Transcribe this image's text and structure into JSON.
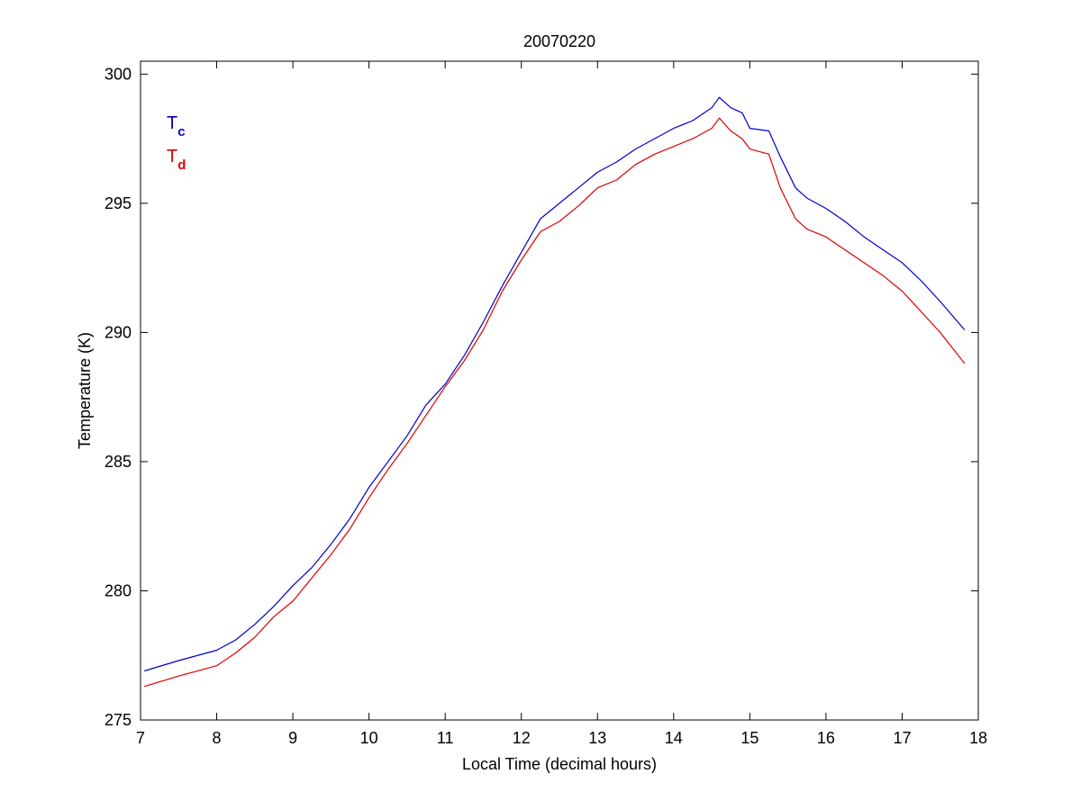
{
  "chart_data": {
    "type": "line",
    "title": "20070220",
    "xlabel": "Local Time (decimal hours)",
    "ylabel": "Temperature (K)",
    "xlim": [
      7,
      18
    ],
    "ylim": [
      275,
      300.5
    ],
    "xticks": [
      7,
      8,
      9,
      10,
      11,
      12,
      13,
      14,
      15,
      16,
      17,
      18
    ],
    "yticks": [
      275,
      280,
      285,
      290,
      295,
      300
    ],
    "grid": false,
    "legend": {
      "placement": "top-left",
      "entries": [
        {
          "main": "T",
          "sub": "c",
          "color": "#0000cc"
        },
        {
          "main": "T",
          "sub": "d",
          "color": "#dd0000"
        }
      ]
    },
    "series": [
      {
        "key": "Tc",
        "color": "#0000cc",
        "x": [
          7.05,
          7.5,
          8.0,
          8.25,
          8.5,
          8.75,
          9.0,
          9.25,
          9.5,
          9.75,
          10.0,
          10.25,
          10.5,
          10.75,
          11.0,
          11.25,
          11.5,
          11.75,
          12.0,
          12.25,
          12.5,
          12.75,
          13.0,
          13.25,
          13.5,
          13.75,
          14.0,
          14.25,
          14.5,
          14.6,
          14.75,
          14.9,
          15.0,
          15.25,
          15.4,
          15.6,
          15.75,
          16.0,
          16.25,
          16.5,
          16.75,
          17.0,
          17.25,
          17.5,
          17.82
        ],
        "y": [
          276.9,
          277.3,
          277.7,
          278.1,
          278.7,
          279.4,
          280.2,
          280.9,
          281.8,
          282.8,
          284.0,
          285.0,
          286.0,
          287.2,
          288.0,
          289.1,
          290.4,
          291.8,
          293.1,
          294.4,
          295.0,
          295.6,
          296.2,
          296.6,
          297.1,
          297.5,
          297.9,
          298.2,
          298.7,
          299.1,
          298.7,
          298.5,
          297.9,
          297.8,
          296.8,
          295.6,
          295.2,
          294.8,
          294.3,
          293.7,
          293.2,
          292.7,
          292.0,
          291.2,
          290.1
        ]
      },
      {
        "key": "Td",
        "color": "#dd0000",
        "x": [
          7.05,
          7.5,
          8.0,
          8.25,
          8.5,
          8.75,
          9.0,
          9.25,
          9.5,
          9.75,
          10.0,
          10.25,
          10.5,
          10.75,
          11.0,
          11.25,
          11.5,
          11.75,
          12.0,
          12.25,
          12.5,
          12.75,
          13.0,
          13.25,
          13.5,
          13.75,
          14.0,
          14.25,
          14.5,
          14.6,
          14.75,
          14.9,
          15.0,
          15.25,
          15.4,
          15.6,
          15.75,
          16.0,
          16.25,
          16.5,
          16.75,
          17.0,
          17.25,
          17.5,
          17.82
        ],
        "y": [
          276.3,
          276.7,
          277.1,
          277.6,
          278.2,
          279.0,
          279.6,
          280.5,
          281.4,
          282.4,
          283.6,
          284.7,
          285.7,
          286.8,
          287.9,
          288.9,
          290.1,
          291.6,
          292.8,
          293.9,
          294.3,
          294.9,
          295.6,
          295.9,
          296.5,
          296.9,
          297.2,
          297.5,
          297.9,
          298.3,
          297.8,
          297.5,
          297.1,
          296.9,
          295.6,
          294.4,
          294.0,
          293.7,
          293.2,
          292.7,
          292.2,
          291.6,
          290.8,
          290.0,
          288.8
        ]
      }
    ]
  }
}
